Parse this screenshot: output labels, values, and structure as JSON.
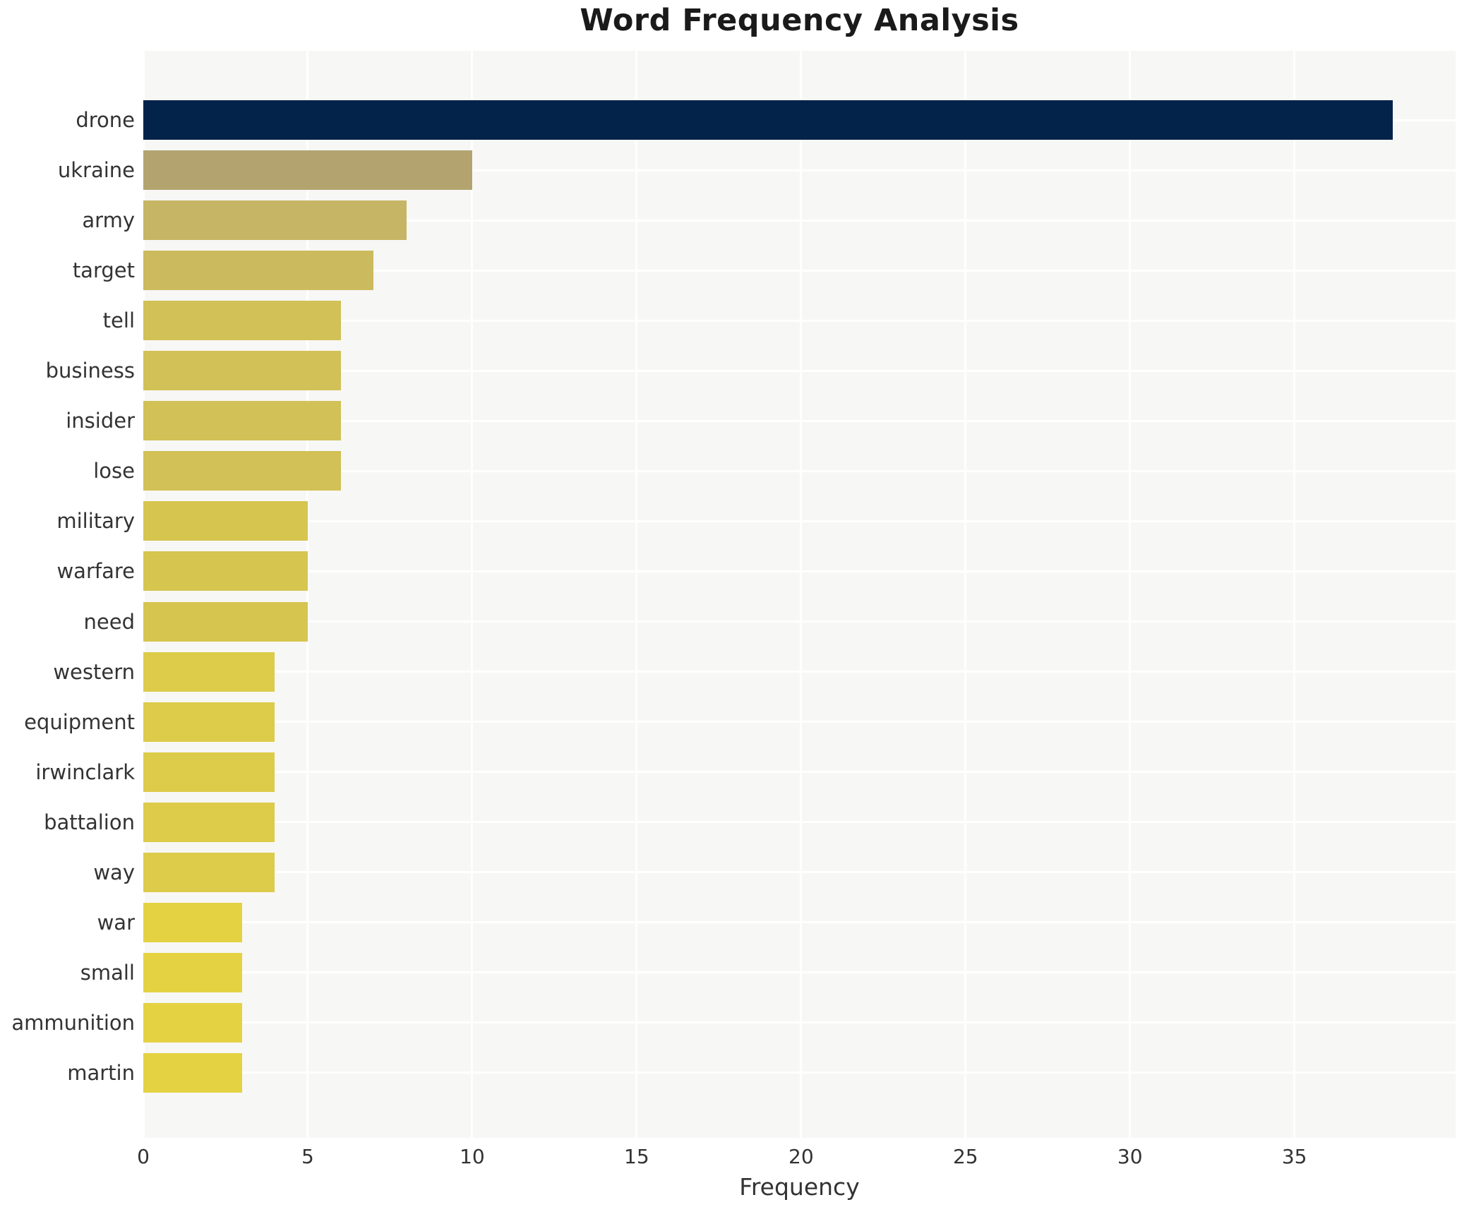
{
  "title": "Word Frequency Analysis",
  "x_axis": {
    "label": "Frequency",
    "ticks": [
      0,
      5,
      10,
      15,
      20,
      25,
      30,
      35
    ]
  },
  "chart_data": {
    "type": "bar",
    "orientation": "horizontal",
    "title": "Word Frequency Analysis",
    "xlabel": "Frequency",
    "ylabel": "",
    "xlim": [
      0,
      39.9
    ],
    "grid": "white major gridlines (vertical at ticks, horizontal at category centers) on light gray panel",
    "legend": "none",
    "panel_bg": "#f7f7f6",
    "gridline_color": "#ffffff",
    "categories": [
      "drone",
      "ukraine",
      "army",
      "target",
      "tell",
      "business",
      "insider",
      "lose",
      "military",
      "warfare",
      "need",
      "western",
      "equipment",
      "irwinclark",
      "battalion",
      "way",
      "war",
      "small",
      "ammunition",
      "martin"
    ],
    "values": [
      38,
      10,
      8,
      7,
      6,
      6,
      6,
      6,
      5,
      5,
      5,
      4,
      4,
      4,
      4,
      4,
      3,
      3,
      3,
      3
    ],
    "bar_colors": [
      "#03234b",
      "#b3a46f",
      "#c6b565",
      "#ccbb5e",
      "#d2c157",
      "#d2c157",
      "#d2c157",
      "#d2c157",
      "#d6c54f",
      "#d6c54f",
      "#d6c54f",
      "#ddcb4a",
      "#ddcb4a",
      "#ddcb4a",
      "#ddcb4a",
      "#ddcb4a",
      "#e4d243",
      "#e4d243",
      "#e4d243",
      "#e4d243"
    ]
  }
}
